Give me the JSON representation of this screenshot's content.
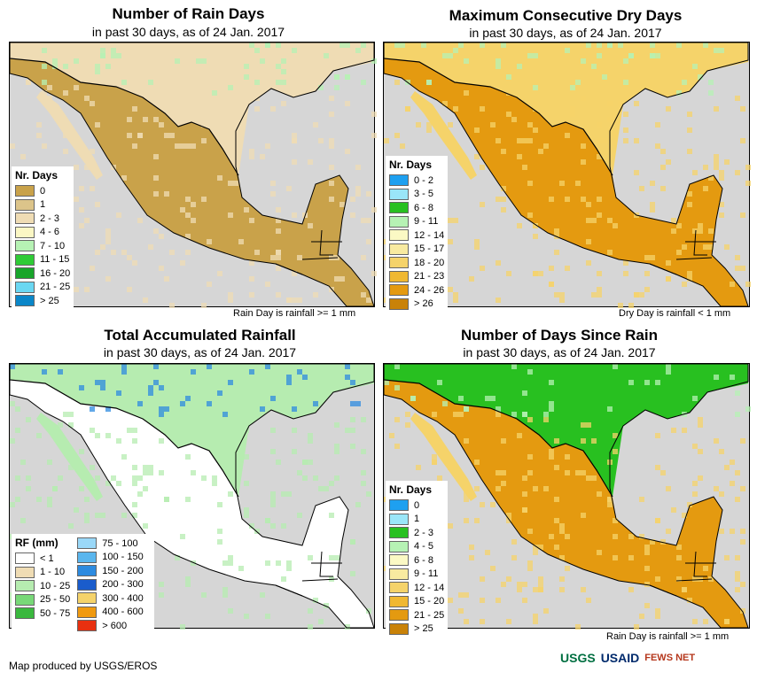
{
  "panels": [
    {
      "title": "Number of Rain Days",
      "subtitle": "in past 30 days, as of 24 Jan. 2017",
      "note": "Rain Day is rainfall >= 1 mm",
      "legend_title": "Nr. Days",
      "legend": [
        {
          "label": "0",
          "color": "#c9a24a"
        },
        {
          "label": "1",
          "color": "#dcc48a"
        },
        {
          "label": "2 - 3",
          "color": "#efdcb4"
        },
        {
          "label": "4 - 6",
          "color": "#fbf7c4"
        },
        {
          "label": "7 - 10",
          "color": "#b6f2b4"
        },
        {
          "label": "11 - 15",
          "color": "#2fcb36"
        },
        {
          "label": "16 - 20",
          "color": "#18a52a"
        },
        {
          "label": "21 - 25",
          "color": "#6ad7f2"
        },
        {
          "label": "> 25",
          "color": "#0a86c8"
        }
      ],
      "land_color": "#c9a24a",
      "accent_color": "#efdcb4",
      "north_color": "#efdcb4",
      "north_accent": "#b6f2b4"
    },
    {
      "title": "Maximum Consecutive Dry Days",
      "subtitle": "in past 30 days, as of 24 Jan. 2017",
      "note": "Dry Day is rainfall < 1 mm",
      "legend_title": "Nr. Days",
      "legend": [
        {
          "label": "0 - 2",
          "color": "#1ea0f0"
        },
        {
          "label": "3 - 5",
          "color": "#9ae6f8"
        },
        {
          "label": "6 - 8",
          "color": "#28c020"
        },
        {
          "label": "9 - 11",
          "color": "#b6f2b4"
        },
        {
          "label": "12 - 14",
          "color": "#fbf9c4"
        },
        {
          "label": "15 - 17",
          "color": "#f8eaa0"
        },
        {
          "label": "18 - 20",
          "color": "#f5d36a"
        },
        {
          "label": "21 - 23",
          "color": "#f0b832"
        },
        {
          "label": "24 - 26",
          "color": "#e49a10"
        },
        {
          "label": "> 26",
          "color": "#c98208"
        }
      ],
      "land_color": "#e49a10",
      "accent_color": "#f5d36a",
      "north_color": "#f5d36a",
      "north_accent": "#b6f2b4"
    },
    {
      "title": "Total Accumulated Rainfall",
      "subtitle": "in past 30 days, as of 24 Jan. 2017",
      "note": "",
      "legend_title": "RF (mm)",
      "legend": [
        {
          "label": "< 1",
          "color": "#ffffff"
        },
        {
          "label": "1 - 10",
          "color": "#efdcb4"
        },
        {
          "label": "10 - 25",
          "color": "#b6ecb0"
        },
        {
          "label": "25 - 50",
          "color": "#78d878"
        },
        {
          "label": "50 - 75",
          "color": "#3ab83e"
        }
      ],
      "legend_col2": [
        {
          "label": "75 - 100",
          "color": "#9ad8f8"
        },
        {
          "label": "100 - 150",
          "color": "#5ab6ee"
        },
        {
          "label": "150 - 200",
          "color": "#2d8be0"
        },
        {
          "label": "200 - 300",
          "color": "#1a5ccc"
        },
        {
          "label": "300 - 400",
          "color": "#f5d36a"
        },
        {
          "label": "400 - 600",
          "color": "#f09a10"
        },
        {
          "label": "> 600",
          "color": "#e83010"
        }
      ],
      "land_color": "#ffffff",
      "accent_color": "#b6ecb0",
      "north_color": "#b6ecb0",
      "north_accent": "#2d8be0"
    },
    {
      "title": "Number of Days Since Rain",
      "subtitle": "in past 30 days, as of 24 Jan. 2017",
      "note": "Rain Day is rainfall >= 1 mm",
      "legend_title": "Nr. Days",
      "legend": [
        {
          "label": "0",
          "color": "#1ea0f0"
        },
        {
          "label": "1",
          "color": "#9ae6f8"
        },
        {
          "label": "2 - 3",
          "color": "#28c020"
        },
        {
          "label": "4 - 5",
          "color": "#b6f2b4"
        },
        {
          "label": "6 - 8",
          "color": "#fbf9c4"
        },
        {
          "label": "9 - 11",
          "color": "#f8eaa0"
        },
        {
          "label": "12 - 14",
          "color": "#f5d36a"
        },
        {
          "label": "15 - 20",
          "color": "#f0b832"
        },
        {
          "label": "21 - 25",
          "color": "#e49a10"
        },
        {
          "label": "> 25",
          "color": "#c98208"
        }
      ],
      "land_color": "#e49a10",
      "accent_color": "#f5d36a",
      "north_color": "#28c020",
      "north_accent": "#b6f2b4"
    }
  ],
  "colors": {
    "water": "#d6d6d6",
    "border": "#000000"
  },
  "footer": "Map produced by USGS/EROS",
  "logos": [
    {
      "name": "USGS",
      "color": "#006f41"
    },
    {
      "name": "USAID",
      "color": "#002a6c"
    },
    {
      "name": "FEWS NET",
      "color": "#b5371c"
    }
  ]
}
